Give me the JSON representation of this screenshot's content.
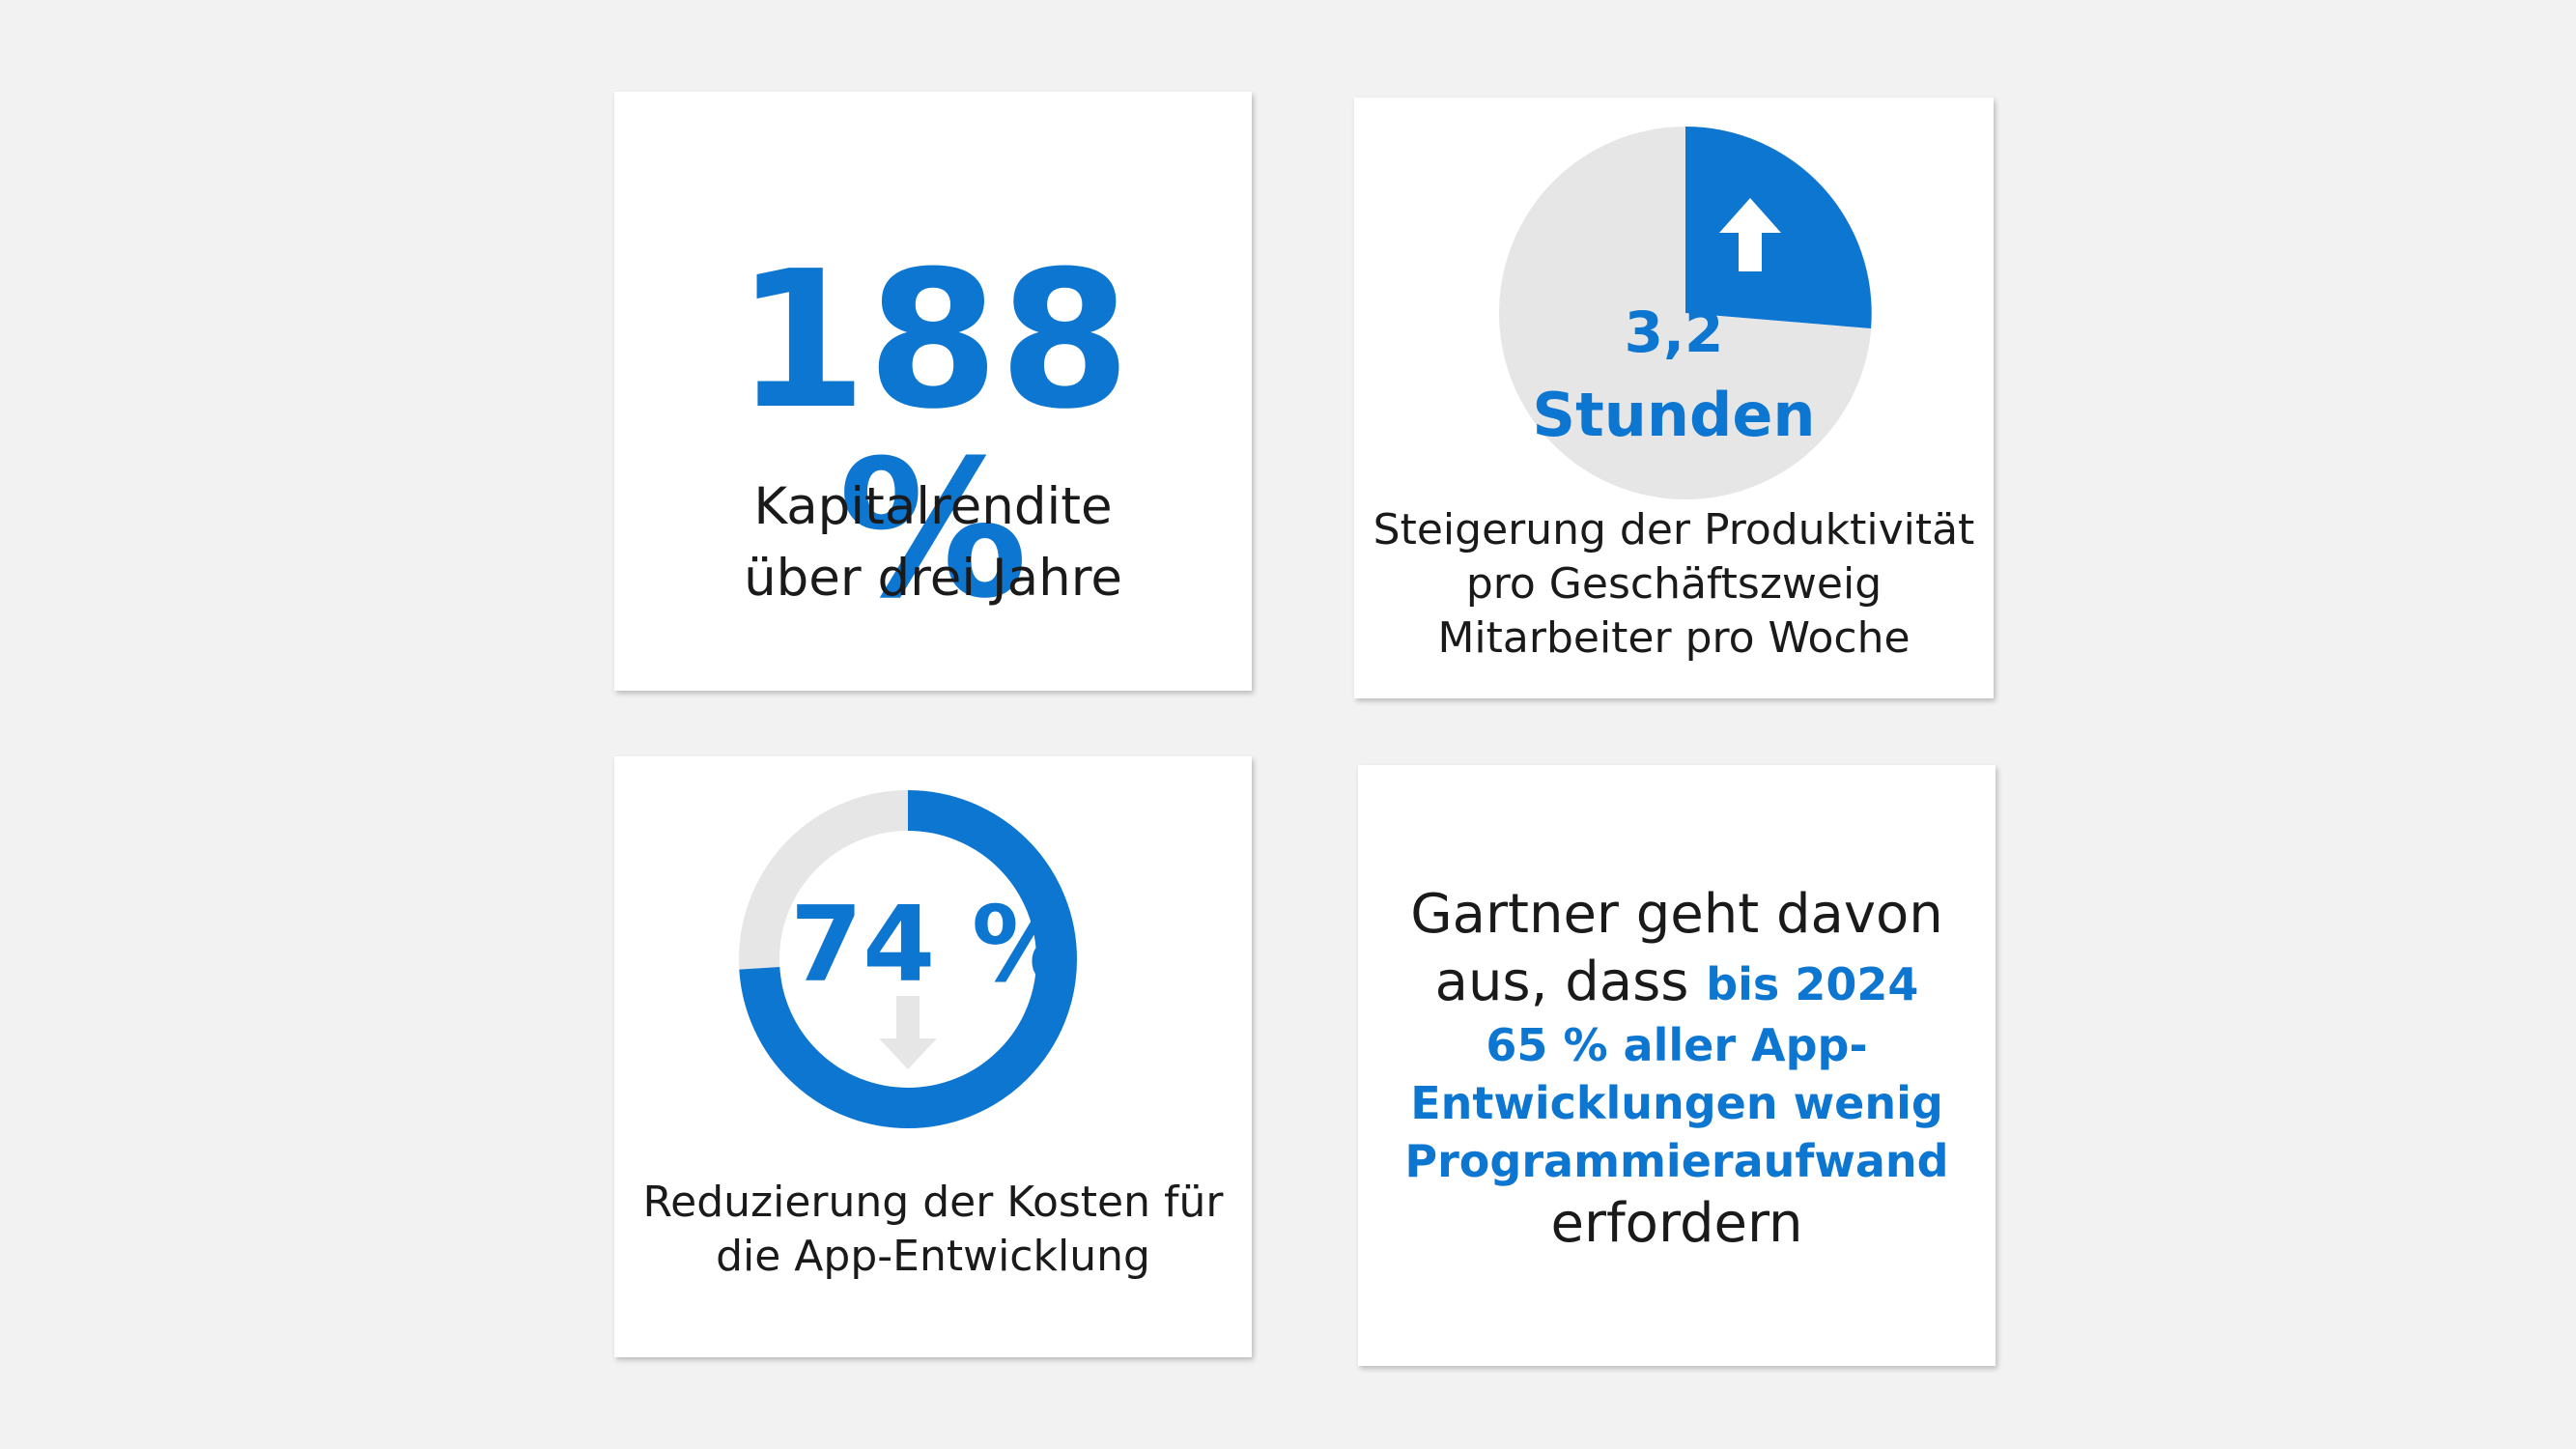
{
  "roi": {
    "value": "188 %",
    "label_line1": "Kapitalrendite",
    "label_line2": "über drei Jahre"
  },
  "productivity": {
    "value": "3,2",
    "unit": "Stunden",
    "label_line1": "Steigerung der Produktivität",
    "label_line2": "pro Geschäftszweig",
    "label_line3": "Mitarbeiter pro Woche",
    "icon": "arrow-up-icon"
  },
  "cost": {
    "value": "74 %",
    "fraction": 0.74,
    "label_line1": "Reduzierung der Kosten für",
    "label_line2": "die App-Entwicklung",
    "icon": "arrow-down-icon"
  },
  "gartner": {
    "line1": "Gartner geht davon",
    "line2_plain": "aus, dass ",
    "line2_blue": "bis 2024",
    "line3": "65 % aller App-",
    "line4": "Entwicklungen wenig",
    "line5": "Programmieraufwand",
    "line6": "erfordern"
  },
  "colors": {
    "accent": "#0d76d1",
    "track": "#e6e6e6",
    "background": "#f2f2f2",
    "text": "#1a1a1a"
  }
}
